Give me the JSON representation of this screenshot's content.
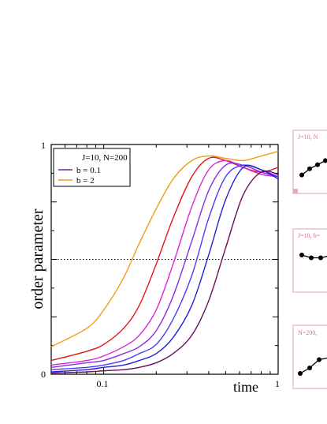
{
  "chart_data": [
    {
      "type": "line",
      "title": "",
      "xlabel": "time",
      "ylabel": "order parameter",
      "x_scale": "log",
      "xlim": [
        0.05,
        1
      ],
      "ylim": [
        0,
        1
      ],
      "x_tick_labels": [
        "0.1",
        "1"
      ],
      "y_tick_labels": [
        "0",
        "1"
      ],
      "legend": {
        "placement": "top-left",
        "header": "J=10,  N=200",
        "entries": [
          {
            "label": "b = 0.1",
            "color": "#7a1fa2"
          },
          {
            "label": "b = 2",
            "color": "#f39c12"
          }
        ]
      },
      "reference_line": {
        "y": 0.5,
        "style": "dotted"
      },
      "series": [
        {
          "name": "b = 2",
          "color": "#f39c12",
          "x": [
            0.05,
            0.08,
            0.1,
            0.13,
            0.16,
            0.2,
            0.25,
            0.32,
            0.4,
            0.5,
            0.63,
            0.8,
            1.0
          ],
          "y": [
            0.12,
            0.2,
            0.28,
            0.42,
            0.57,
            0.72,
            0.85,
            0.93,
            0.95,
            0.94,
            0.93,
            0.95,
            0.97
          ]
        },
        {
          "color": "#e01818",
          "x": [
            0.05,
            0.08,
            0.1,
            0.13,
            0.16,
            0.2,
            0.25,
            0.32,
            0.4,
            0.5,
            0.63,
            0.8,
            1.0
          ],
          "y": [
            0.06,
            0.1,
            0.13,
            0.2,
            0.3,
            0.48,
            0.68,
            0.86,
            0.94,
            0.93,
            0.9,
            0.88,
            0.9
          ]
        },
        {
          "color": "#d926d9",
          "x": [
            0.05,
            0.08,
            0.1,
            0.13,
            0.16,
            0.2,
            0.25,
            0.32,
            0.4,
            0.5,
            0.63,
            0.8,
            1.0
          ],
          "y": [
            0.04,
            0.06,
            0.08,
            0.12,
            0.17,
            0.28,
            0.48,
            0.73,
            0.89,
            0.93,
            0.9,
            0.87,
            0.86
          ]
        },
        {
          "color": "#8a2be2",
          "x": [
            0.05,
            0.08,
            0.1,
            0.13,
            0.16,
            0.2,
            0.25,
            0.32,
            0.4,
            0.5,
            0.63,
            0.8,
            1.0
          ],
          "y": [
            0.03,
            0.05,
            0.06,
            0.09,
            0.12,
            0.19,
            0.34,
            0.58,
            0.8,
            0.91,
            0.91,
            0.88,
            0.86
          ]
        },
        {
          "color": "#4b3bff",
          "x": [
            0.05,
            0.08,
            0.1,
            0.13,
            0.16,
            0.2,
            0.25,
            0.32,
            0.4,
            0.5,
            0.63,
            0.8,
            1.0
          ],
          "y": [
            0.02,
            0.03,
            0.04,
            0.06,
            0.09,
            0.13,
            0.24,
            0.43,
            0.68,
            0.86,
            0.91,
            0.89,
            0.86
          ]
        },
        {
          "color": "#1f1fd6",
          "x": [
            0.05,
            0.08,
            0.1,
            0.13,
            0.16,
            0.2,
            0.25,
            0.32,
            0.4,
            0.5,
            0.63,
            0.8,
            1.0
          ],
          "y": [
            0.01,
            0.02,
            0.03,
            0.04,
            0.06,
            0.09,
            0.16,
            0.3,
            0.52,
            0.76,
            0.9,
            0.89,
            0.85
          ]
        },
        {
          "name": "b = 0.1",
          "color": "#6a0d5a",
          "x": [
            0.05,
            0.08,
            0.1,
            0.13,
            0.16,
            0.2,
            0.25,
            0.32,
            0.4,
            0.5,
            0.63,
            0.8,
            1.0
          ],
          "y": [
            0.005,
            0.01,
            0.015,
            0.02,
            0.03,
            0.05,
            0.09,
            0.17,
            0.32,
            0.55,
            0.78,
            0.88,
            0.87
          ]
        }
      ]
    },
    {
      "type": "scatter",
      "title": "J=10, N",
      "x": [
        1,
        2,
        3,
        4
      ],
      "y": [
        0.2,
        0.35,
        0.45,
        0.55
      ]
    },
    {
      "type": "scatter",
      "title": "J=10, b=",
      "x": [
        1,
        2,
        3
      ],
      "y": [
        0.6,
        0.55,
        0.55
      ]
    },
    {
      "type": "scatter",
      "title": "N=200,",
      "x": [
        1,
        2,
        3
      ],
      "y": [
        0.2,
        0.3,
        0.45
      ]
    }
  ]
}
